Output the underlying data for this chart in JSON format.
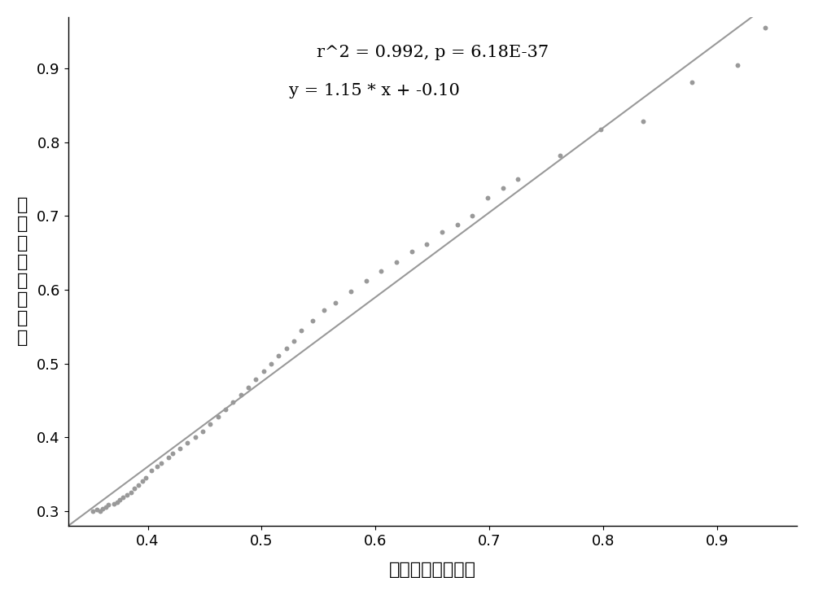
{
  "scatter_x": [
    0.352,
    0.355,
    0.358,
    0.36,
    0.363,
    0.365,
    0.37,
    0.373,
    0.375,
    0.378,
    0.382,
    0.385,
    0.388,
    0.392,
    0.395,
    0.398,
    0.403,
    0.408,
    0.412,
    0.418,
    0.422,
    0.428,
    0.435,
    0.442,
    0.448,
    0.455,
    0.462,
    0.468,
    0.475,
    0.482,
    0.488,
    0.495,
    0.502,
    0.508,
    0.515,
    0.522,
    0.528,
    0.535,
    0.545,
    0.555,
    0.565,
    0.578,
    0.592,
    0.605,
    0.618,
    0.632,
    0.645,
    0.658,
    0.672,
    0.685,
    0.698,
    0.712,
    0.725,
    0.762,
    0.798,
    0.835,
    0.878,
    0.918,
    0.942
  ],
  "scatter_y": [
    0.3,
    0.302,
    0.3,
    0.303,
    0.305,
    0.308,
    0.31,
    0.312,
    0.315,
    0.318,
    0.322,
    0.325,
    0.33,
    0.335,
    0.34,
    0.345,
    0.355,
    0.36,
    0.365,
    0.372,
    0.378,
    0.385,
    0.392,
    0.4,
    0.408,
    0.418,
    0.428,
    0.438,
    0.448,
    0.458,
    0.468,
    0.478,
    0.49,
    0.5,
    0.51,
    0.52,
    0.53,
    0.545,
    0.558,
    0.572,
    0.582,
    0.598,
    0.612,
    0.625,
    0.638,
    0.652,
    0.662,
    0.678,
    0.688,
    0.7,
    0.725,
    0.738,
    0.75,
    0.782,
    0.818,
    0.828,
    0.882,
    0.905,
    0.955
  ],
  "line_x": [
    0.33,
    0.97
  ],
  "line_slope": 1.15,
  "line_intercept": -0.1,
  "r2_text": "r^2 = 0.992, p = 6.18E-37",
  "eq_text": "y = 1.15 * x + -0.10",
  "xlabel": "预测每月存活概率",
  "ylabel": "实际每月存活概率",
  "xlim": [
    0.33,
    0.97
  ],
  "ylim": [
    0.28,
    0.97
  ],
  "xticks": [
    0.4,
    0.5,
    0.6,
    0.7,
    0.8,
    0.9
  ],
  "yticks": [
    0.3,
    0.4,
    0.5,
    0.6,
    0.7,
    0.8,
    0.9
  ],
  "scatter_color": "#999999",
  "line_color": "#999999",
  "bg_color": "#ffffff",
  "marker": "o",
  "marker_size": 18,
  "line_width": 1.5,
  "annotation_fontsize": 15,
  "axis_label_fontsize": 16,
  "tick_fontsize": 13
}
